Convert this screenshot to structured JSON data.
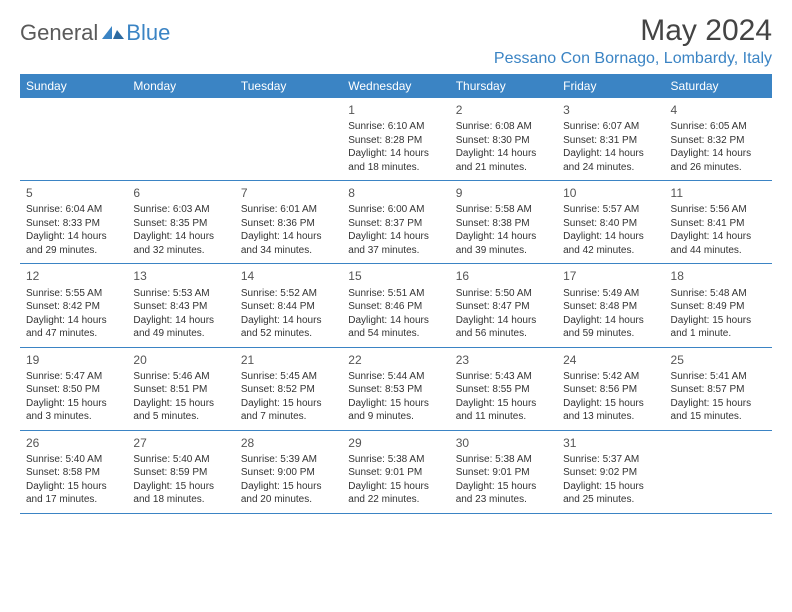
{
  "logo": {
    "general": "General",
    "blue": "Blue"
  },
  "title": "May 2024",
  "location": "Pessano Con Bornago, Lombardy, Italy",
  "colors": {
    "accent": "#3b84c4",
    "header_bg": "#3b84c4",
    "header_text": "#ffffff",
    "body_text": "#333333",
    "title_text": "#444444",
    "background": "#ffffff"
  },
  "typography": {
    "title_fontsize": 30,
    "location_fontsize": 16,
    "dayheader_fontsize": 12,
    "daynum_fontsize": 12,
    "cell_fontsize": 10
  },
  "day_names": [
    "Sunday",
    "Monday",
    "Tuesday",
    "Wednesday",
    "Thursday",
    "Friday",
    "Saturday"
  ],
  "weeks": [
    [
      null,
      null,
      null,
      {
        "n": "1",
        "sr": "Sunrise: 6:10 AM",
        "ss": "Sunset: 8:28 PM",
        "d1": "Daylight: 14 hours",
        "d2": "and 18 minutes."
      },
      {
        "n": "2",
        "sr": "Sunrise: 6:08 AM",
        "ss": "Sunset: 8:30 PM",
        "d1": "Daylight: 14 hours",
        "d2": "and 21 minutes."
      },
      {
        "n": "3",
        "sr": "Sunrise: 6:07 AM",
        "ss": "Sunset: 8:31 PM",
        "d1": "Daylight: 14 hours",
        "d2": "and 24 minutes."
      },
      {
        "n": "4",
        "sr": "Sunrise: 6:05 AM",
        "ss": "Sunset: 8:32 PM",
        "d1": "Daylight: 14 hours",
        "d2": "and 26 minutes."
      }
    ],
    [
      {
        "n": "5",
        "sr": "Sunrise: 6:04 AM",
        "ss": "Sunset: 8:33 PM",
        "d1": "Daylight: 14 hours",
        "d2": "and 29 minutes."
      },
      {
        "n": "6",
        "sr": "Sunrise: 6:03 AM",
        "ss": "Sunset: 8:35 PM",
        "d1": "Daylight: 14 hours",
        "d2": "and 32 minutes."
      },
      {
        "n": "7",
        "sr": "Sunrise: 6:01 AM",
        "ss": "Sunset: 8:36 PM",
        "d1": "Daylight: 14 hours",
        "d2": "and 34 minutes."
      },
      {
        "n": "8",
        "sr": "Sunrise: 6:00 AM",
        "ss": "Sunset: 8:37 PM",
        "d1": "Daylight: 14 hours",
        "d2": "and 37 minutes."
      },
      {
        "n": "9",
        "sr": "Sunrise: 5:58 AM",
        "ss": "Sunset: 8:38 PM",
        "d1": "Daylight: 14 hours",
        "d2": "and 39 minutes."
      },
      {
        "n": "10",
        "sr": "Sunrise: 5:57 AM",
        "ss": "Sunset: 8:40 PM",
        "d1": "Daylight: 14 hours",
        "d2": "and 42 minutes."
      },
      {
        "n": "11",
        "sr": "Sunrise: 5:56 AM",
        "ss": "Sunset: 8:41 PM",
        "d1": "Daylight: 14 hours",
        "d2": "and 44 minutes."
      }
    ],
    [
      {
        "n": "12",
        "sr": "Sunrise: 5:55 AM",
        "ss": "Sunset: 8:42 PM",
        "d1": "Daylight: 14 hours",
        "d2": "and 47 minutes."
      },
      {
        "n": "13",
        "sr": "Sunrise: 5:53 AM",
        "ss": "Sunset: 8:43 PM",
        "d1": "Daylight: 14 hours",
        "d2": "and 49 minutes."
      },
      {
        "n": "14",
        "sr": "Sunrise: 5:52 AM",
        "ss": "Sunset: 8:44 PM",
        "d1": "Daylight: 14 hours",
        "d2": "and 52 minutes."
      },
      {
        "n": "15",
        "sr": "Sunrise: 5:51 AM",
        "ss": "Sunset: 8:46 PM",
        "d1": "Daylight: 14 hours",
        "d2": "and 54 minutes."
      },
      {
        "n": "16",
        "sr": "Sunrise: 5:50 AM",
        "ss": "Sunset: 8:47 PM",
        "d1": "Daylight: 14 hours",
        "d2": "and 56 minutes."
      },
      {
        "n": "17",
        "sr": "Sunrise: 5:49 AM",
        "ss": "Sunset: 8:48 PM",
        "d1": "Daylight: 14 hours",
        "d2": "and 59 minutes."
      },
      {
        "n": "18",
        "sr": "Sunrise: 5:48 AM",
        "ss": "Sunset: 8:49 PM",
        "d1": "Daylight: 15 hours",
        "d2": "and 1 minute."
      }
    ],
    [
      {
        "n": "19",
        "sr": "Sunrise: 5:47 AM",
        "ss": "Sunset: 8:50 PM",
        "d1": "Daylight: 15 hours",
        "d2": "and 3 minutes."
      },
      {
        "n": "20",
        "sr": "Sunrise: 5:46 AM",
        "ss": "Sunset: 8:51 PM",
        "d1": "Daylight: 15 hours",
        "d2": "and 5 minutes."
      },
      {
        "n": "21",
        "sr": "Sunrise: 5:45 AM",
        "ss": "Sunset: 8:52 PM",
        "d1": "Daylight: 15 hours",
        "d2": "and 7 minutes."
      },
      {
        "n": "22",
        "sr": "Sunrise: 5:44 AM",
        "ss": "Sunset: 8:53 PM",
        "d1": "Daylight: 15 hours",
        "d2": "and 9 minutes."
      },
      {
        "n": "23",
        "sr": "Sunrise: 5:43 AM",
        "ss": "Sunset: 8:55 PM",
        "d1": "Daylight: 15 hours",
        "d2": "and 11 minutes."
      },
      {
        "n": "24",
        "sr": "Sunrise: 5:42 AM",
        "ss": "Sunset: 8:56 PM",
        "d1": "Daylight: 15 hours",
        "d2": "and 13 minutes."
      },
      {
        "n": "25",
        "sr": "Sunrise: 5:41 AM",
        "ss": "Sunset: 8:57 PM",
        "d1": "Daylight: 15 hours",
        "d2": "and 15 minutes."
      }
    ],
    [
      {
        "n": "26",
        "sr": "Sunrise: 5:40 AM",
        "ss": "Sunset: 8:58 PM",
        "d1": "Daylight: 15 hours",
        "d2": "and 17 minutes."
      },
      {
        "n": "27",
        "sr": "Sunrise: 5:40 AM",
        "ss": "Sunset: 8:59 PM",
        "d1": "Daylight: 15 hours",
        "d2": "and 18 minutes."
      },
      {
        "n": "28",
        "sr": "Sunrise: 5:39 AM",
        "ss": "Sunset: 9:00 PM",
        "d1": "Daylight: 15 hours",
        "d2": "and 20 minutes."
      },
      {
        "n": "29",
        "sr": "Sunrise: 5:38 AM",
        "ss": "Sunset: 9:01 PM",
        "d1": "Daylight: 15 hours",
        "d2": "and 22 minutes."
      },
      {
        "n": "30",
        "sr": "Sunrise: 5:38 AM",
        "ss": "Sunset: 9:01 PM",
        "d1": "Daylight: 15 hours",
        "d2": "and 23 minutes."
      },
      {
        "n": "31",
        "sr": "Sunrise: 5:37 AM",
        "ss": "Sunset: 9:02 PM",
        "d1": "Daylight: 15 hours",
        "d2": "and 25 minutes."
      },
      null
    ]
  ]
}
